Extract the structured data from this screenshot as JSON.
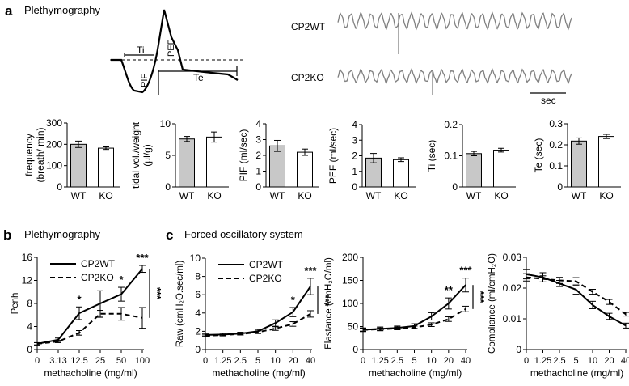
{
  "panels": {
    "a": {
      "letter": "a",
      "title": "Plethymography"
    },
    "b": {
      "letter": "b",
      "title": "Plethymography"
    },
    "c": {
      "letter": "c",
      "title": "Forced oscillatory system"
    }
  },
  "waveform": {
    "labels": {
      "ti": "Ti",
      "te": "Te",
      "pif": "PIF",
      "pef": "PEF"
    },
    "trace_labels": {
      "wt": "CP2WT",
      "ko": "CP2KO"
    },
    "scale_label": "sec"
  },
  "colors": {
    "wt_bar": "#c8c8c8",
    "ko_bar": "#ffffff",
    "trace": "#808080",
    "ink": "#000000"
  },
  "chart_data": [
    {
      "id": "freq",
      "type": "bar",
      "categories": [
        "WT",
        "KO"
      ],
      "values": [
        200,
        182
      ],
      "errors": [
        15,
        6
      ],
      "ylabel_lines": [
        "frequency",
        "(breath/ min)"
      ],
      "ylim": [
        0,
        300
      ],
      "yticks": [
        "0",
        "100",
        "200",
        "300"
      ],
      "ytick_values": [
        0,
        100,
        200,
        300
      ]
    },
    {
      "id": "tidal",
      "type": "bar",
      "categories": [
        "WT",
        "KO"
      ],
      "values": [
        7.6,
        7.9
      ],
      "errors": [
        0.4,
        0.8
      ],
      "ylabel_lines": [
        "tidal vol./weight",
        "(µl/g)"
      ],
      "ylim": [
        0,
        10
      ],
      "yticks": [
        "0",
        "5",
        "10"
      ],
      "ytick_values": [
        0,
        5,
        10
      ]
    },
    {
      "id": "pif",
      "type": "bar",
      "categories": [
        "WT",
        "KO"
      ],
      "values": [
        2.6,
        2.2
      ],
      "errors": [
        0.35,
        0.2
      ],
      "ylabel_lines": [
        "PIF (ml/sec)"
      ],
      "ylim": [
        0,
        4
      ],
      "yticks": [
        "0",
        "1",
        "2",
        "3",
        "4"
      ],
      "ytick_values": [
        0,
        1,
        2,
        3,
        4
      ]
    },
    {
      "id": "pef",
      "type": "bar",
      "categories": [
        "WT",
        "KO"
      ],
      "values": [
        1.85,
        1.75
      ],
      "errors": [
        0.3,
        0.12
      ],
      "ylabel_lines": [
        "PEF (ml/sec)"
      ],
      "ylim": [
        0,
        4
      ],
      "yticks": [
        "0",
        "1",
        "2",
        "3",
        "4"
      ],
      "ytick_values": [
        0,
        1,
        2,
        3,
        4
      ]
    },
    {
      "id": "ti",
      "type": "bar",
      "categories": [
        "WT",
        "KO"
      ],
      "values": [
        0.107,
        0.118
      ],
      "errors": [
        0.007,
        0.006
      ],
      "ylabel_lines": [
        "Ti  (sec)"
      ],
      "ylim": [
        0,
        0.2
      ],
      "yticks": [
        "0",
        "0.1",
        "0.2"
      ],
      "ytick_values": [
        0,
        0.1,
        0.2
      ]
    },
    {
      "id": "te",
      "type": "bar",
      "categories": [
        "WT",
        "KO"
      ],
      "values": [
        0.218,
        0.24
      ],
      "errors": [
        0.015,
        0.01
      ],
      "ylabel_lines": [
        "Te (sec)"
      ],
      "ylim": [
        0,
        0.3
      ],
      "yticks": [
        "0",
        "0.1",
        "0.2",
        "0.3"
      ],
      "ytick_values": [
        0,
        0.1,
        0.2,
        0.3
      ]
    },
    {
      "id": "penh",
      "type": "line",
      "xlabel": "methacholine (mg/ml)",
      "ylabel": "Penh",
      "x_categories": [
        "0",
        "3.13",
        "12.5",
        "25",
        "50",
        "100"
      ],
      "ylim": [
        0,
        16
      ],
      "yticks": [
        "0",
        "4",
        "8",
        "12",
        "16"
      ],
      "ytick_values": [
        0,
        4,
        8,
        12,
        16
      ],
      "series": [
        {
          "name": "CP2WT",
          "dashed": false,
          "values": [
            1.0,
            1.7,
            6.3,
            8.0,
            9.6,
            14.0
          ],
          "errors": [
            0.2,
            0.3,
            1.1,
            2.2,
            1.2,
            0.6
          ]
        },
        {
          "name": "CP2KO",
          "dashed": true,
          "values": [
            1.0,
            1.4,
            2.9,
            6.2,
            6.2,
            5.5
          ],
          "errors": [
            0.2,
            0.2,
            0.4,
            0.6,
            1.1,
            1.8
          ]
        }
      ],
      "stars": [
        {
          "index": 2,
          "text": "*"
        },
        {
          "index": 4,
          "text": "*"
        },
        {
          "index": 5,
          "text": "***"
        }
      ],
      "bracket_text": "***"
    },
    {
      "id": "raw",
      "type": "line",
      "xlabel": "methacholine (mg/ml)",
      "ylabel": "Raw (cmH₂O.sec/ml)",
      "x_categories": [
        "0",
        "1.25",
        "2.5",
        "5",
        "10",
        "20",
        "40"
      ],
      "ylim": [
        0,
        10
      ],
      "yticks": [
        "0",
        "2",
        "4",
        "6",
        "8",
        "10"
      ],
      "ytick_values": [
        0,
        2,
        4,
        6,
        8,
        10
      ],
      "series": [
        {
          "name": "CP2WT",
          "dashed": false,
          "values": [
            1.6,
            1.65,
            1.75,
            2.0,
            2.9,
            4.1,
            6.9
          ],
          "errors": [
            0.15,
            0.15,
            0.15,
            0.2,
            0.35,
            0.5,
            0.9
          ]
        },
        {
          "name": "CP2KO",
          "dashed": true,
          "values": [
            1.5,
            1.6,
            1.7,
            1.9,
            2.3,
            2.8,
            3.9
          ],
          "errors": [
            0.1,
            0.1,
            0.1,
            0.15,
            0.2,
            0.25,
            0.35
          ]
        }
      ],
      "stars": [
        {
          "index": 5,
          "text": "*"
        },
        {
          "index": 6,
          "text": "***"
        }
      ],
      "bracket_text": "***"
    },
    {
      "id": "elastance",
      "type": "line",
      "xlabel": "methacholine (mg/ml)",
      "ylabel": "Elastance (cmH₂O/ml)",
      "x_categories": [
        "0",
        "1.25",
        "2.5",
        "5",
        "10",
        "20",
        "40"
      ],
      "ylim": [
        0,
        200
      ],
      "yticks": [
        "0",
        "50",
        "100",
        "150",
        "200"
      ],
      "ytick_values": [
        0,
        50,
        100,
        150,
        200
      ],
      "series": [
        {
          "name": "CP2WT",
          "dashed": false,
          "values": [
            43,
            45,
            47,
            51,
            72,
            100,
            140
          ],
          "errors": [
            4,
            4,
            4,
            5,
            8,
            12,
            15
          ]
        },
        {
          "name": "CP2KO",
          "dashed": true,
          "values": [
            43,
            44,
            46,
            48,
            54,
            66,
            88
          ],
          "errors": [
            3,
            3,
            3,
            3,
            4,
            5,
            6
          ]
        }
      ],
      "stars": [
        {
          "index": 5,
          "text": "**"
        },
        {
          "index": 6,
          "text": "***"
        }
      ],
      "bracket_text": "***"
    },
    {
      "id": "compliance",
      "type": "line",
      "xlabel": "methacholine (mg/ml)",
      "ylabel": "Compliance (ml/cmH₂O)",
      "x_categories": [
        "0",
        "1.25",
        "2.5",
        "5",
        "10",
        "20",
        "40"
      ],
      "ylim": [
        0,
        0.03
      ],
      "yticks": [
        "0",
        "0.01",
        "0.02",
        "0.03"
      ],
      "ytick_values": [
        0,
        0.01,
        0.02,
        0.03
      ],
      "series": [
        {
          "name": "CP2WT",
          "dashed": false,
          "values": [
            0.0245,
            0.0235,
            0.0215,
            0.0195,
            0.0145,
            0.0108,
            0.0078
          ],
          "errors": [
            0.0015,
            0.0015,
            0.001,
            0.0015,
            0.0012,
            0.001,
            0.0008
          ]
        },
        {
          "name": "CP2KO",
          "dashed": true,
          "values": [
            0.0235,
            0.023,
            0.0225,
            0.0222,
            0.0188,
            0.0155,
            0.0115
          ],
          "errors": [
            0.0012,
            0.001,
            0.001,
            0.0012,
            0.0008,
            0.0008,
            0.0006
          ]
        }
      ],
      "stars": [],
      "bracket_text": ""
    }
  ]
}
